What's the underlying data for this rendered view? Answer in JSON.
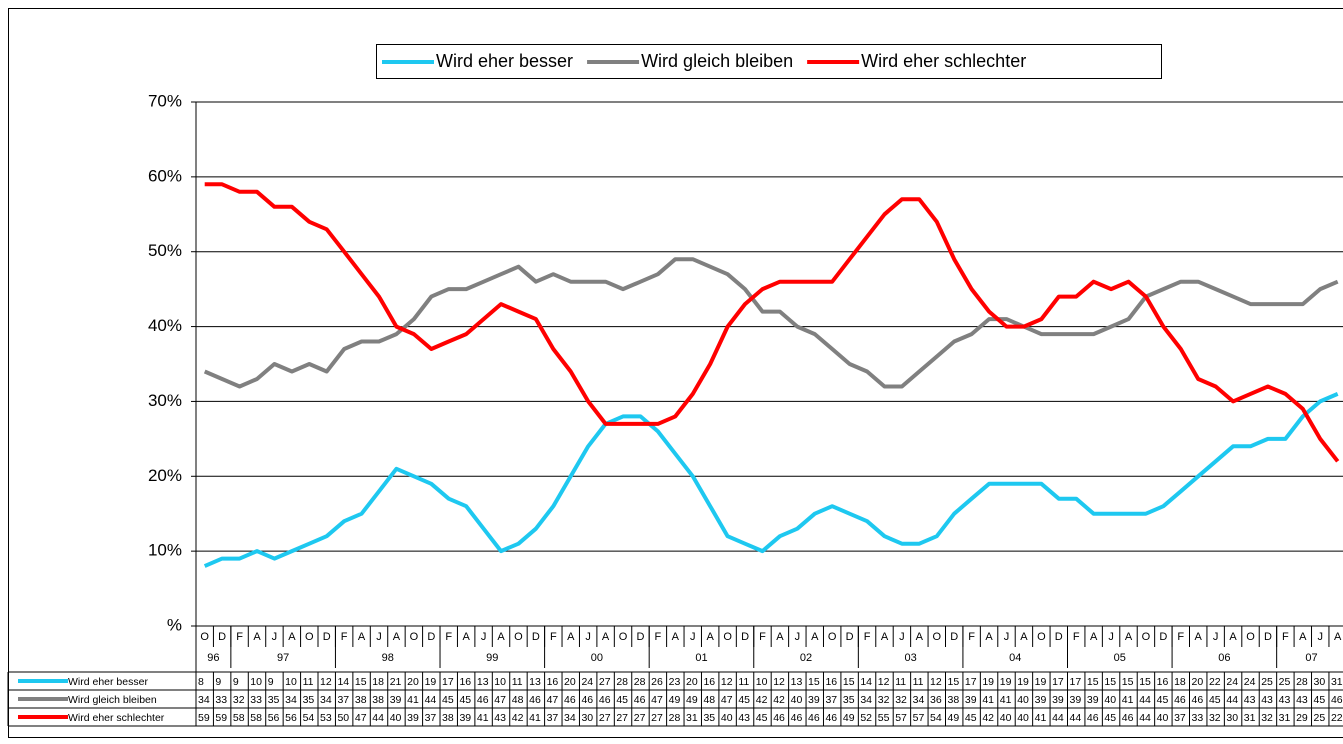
{
  "chart_data": {
    "type": "line",
    "categories": [
      "O",
      "D",
      "F",
      "A",
      "J",
      "A",
      "O",
      "D",
      "F",
      "A",
      "J",
      "A",
      "O",
      "D",
      "F",
      "A",
      "J",
      "A",
      "O",
      "D",
      "F",
      "A",
      "J",
      "A",
      "O",
      "D",
      "F",
      "A",
      "J",
      "A",
      "O",
      "D",
      "F",
      "A",
      "J",
      "A",
      "O",
      "D",
      "F",
      "A",
      "J",
      "A",
      "O",
      "D",
      "F",
      "A",
      "J",
      "A",
      "O",
      "D",
      "F",
      "A",
      "J",
      "A",
      "O",
      "D",
      "F",
      "A",
      "J",
      "A",
      "O",
      "D",
      "F",
      "A",
      "J",
      "A"
    ],
    "years": [
      "96",
      "97",
      "98",
      "99",
      "00",
      "01",
      "02",
      "03",
      "04",
      "05",
      "06",
      "07"
    ],
    "series": [
      {
        "name": "Wird eher besser",
        "color": "#1ec8f0",
        "values": [
          8,
          9,
          9,
          10,
          9,
          10,
          11,
          12,
          14,
          15,
          18,
          21,
          20,
          19,
          17,
          16,
          13,
          10,
          11,
          13,
          16,
          20,
          24,
          27,
          28,
          28,
          26,
          23,
          20,
          16,
          12,
          11,
          10,
          12,
          13,
          15,
          16,
          15,
          14,
          12,
          11,
          11,
          12,
          15,
          17,
          19,
          19,
          19,
          19,
          17,
          17,
          15,
          15,
          15,
          15,
          16,
          18,
          20,
          22,
          24,
          24,
          25,
          25,
          28,
          30,
          31
        ]
      },
      {
        "name": "Wird gleich bleiben",
        "color": "#808080",
        "values": [
          34,
          33,
          32,
          33,
          35,
          34,
          35,
          34,
          37,
          38,
          38,
          39,
          41,
          44,
          45,
          45,
          46,
          47,
          48,
          46,
          47,
          46,
          46,
          46,
          45,
          46,
          47,
          49,
          49,
          48,
          47,
          45,
          42,
          42,
          40,
          39,
          37,
          35,
          34,
          32,
          32,
          34,
          36,
          38,
          39,
          41,
          41,
          40,
          39,
          39,
          39,
          39,
          40,
          41,
          44,
          45,
          46,
          46,
          45,
          44,
          43,
          43,
          43,
          43,
          45,
          46
        ]
      },
      {
        "name": "Wird eher schlechter",
        "color": "#ff0000",
        "values": [
          59,
          59,
          58,
          58,
          56,
          56,
          54,
          53,
          50,
          47,
          44,
          40,
          39,
          37,
          38,
          39,
          41,
          43,
          42,
          41,
          37,
          34,
          30,
          27,
          27,
          27,
          27,
          28,
          31,
          35,
          40,
          43,
          45,
          46,
          46,
          46,
          46,
          49,
          52,
          55,
          57,
          57,
          54,
          49,
          45,
          42,
          40,
          40,
          41,
          44,
          44,
          46,
          45,
          46,
          44,
          40,
          37,
          33,
          32,
          30,
          31,
          32,
          31,
          29,
          25,
          22
        ]
      }
    ],
    "ylim": [
      0,
      70
    ],
    "yticks": [
      {
        "value": 0,
        "label": "%"
      },
      {
        "value": 10,
        "label": "10%"
      },
      {
        "value": 20,
        "label": "20%"
      },
      {
        "value": 30,
        "label": "30%"
      },
      {
        "value": 40,
        "label": "40%"
      },
      {
        "value": 50,
        "label": "50%"
      },
      {
        "value": 60,
        "label": "60%"
      },
      {
        "value": 70,
        "label": "70%"
      }
    ],
    "grid": true,
    "legend": "top"
  }
}
